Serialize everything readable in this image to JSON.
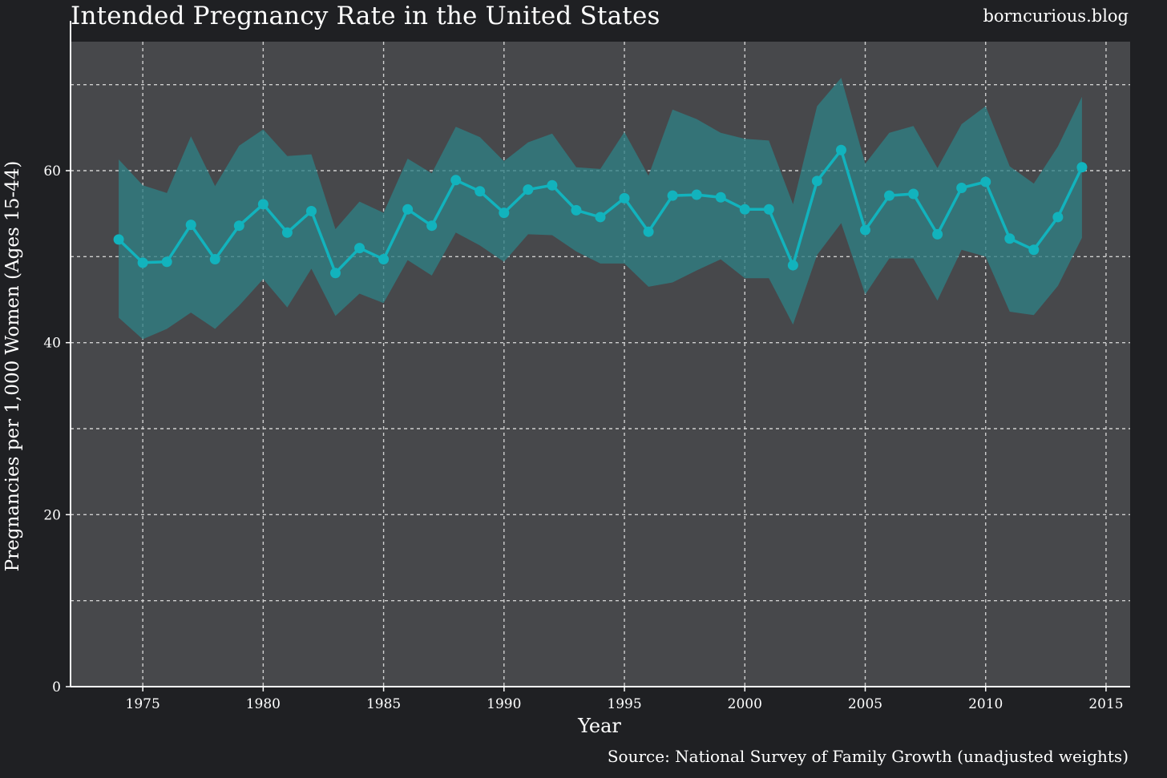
{
  "header": {
    "title": "Intended Pregnancy Rate in the United States",
    "watermark": "borncurious.blog"
  },
  "footer": {
    "source": "Source: National Survey of Family Growth (unadjusted weights)"
  },
  "colors": {
    "background": "#1f2023",
    "panel": "#47484b",
    "line": "#12b3bd",
    "band": "#2f7f84",
    "grid": "#d0d0d0"
  },
  "chart_data": {
    "type": "line",
    "title": "Intended Pregnancy Rate in the United States",
    "xlabel": "Year",
    "ylabel": "Pregnancies per 1,000 Women (Ages 15-44)",
    "xlim": [
      1972,
      2016
    ],
    "ylim": [
      0,
      75
    ],
    "x_ticks": [
      1975,
      1980,
      1985,
      1990,
      1995,
      2000,
      2005,
      2010,
      2015
    ],
    "y_ticks": [
      0,
      20,
      40,
      60
    ],
    "grid": true,
    "series": [
      {
        "name": "Intended pregnancy rate",
        "x": [
          1974,
          1975,
          1976,
          1977,
          1978,
          1979,
          1980,
          1981,
          1982,
          1983,
          1984,
          1985,
          1986,
          1987,
          1988,
          1989,
          1990,
          1991,
          1992,
          1993,
          1994,
          1995,
          1996,
          1997,
          1998,
          1999,
          2000,
          2001,
          2002,
          2003,
          2004,
          2005,
          2006,
          2007,
          2008,
          2009,
          2010,
          2011,
          2012,
          2013,
          2014
        ],
        "values": [
          52.0,
          49.3,
          49.4,
          53.7,
          49.7,
          53.6,
          56.1,
          52.8,
          55.3,
          48.1,
          51.0,
          49.7,
          55.5,
          53.6,
          58.9,
          57.6,
          55.1,
          57.8,
          58.3,
          55.4,
          54.6,
          56.8,
          52.9,
          57.1,
          57.2,
          56.9,
          55.5,
          55.5,
          49.0,
          58.8,
          62.4,
          53.1,
          57.1,
          57.3,
          52.6,
          58.0,
          58.7,
          52.1,
          50.8,
          54.6,
          60.4
        ]
      },
      {
        "name": "Upper bound",
        "x": [
          1974,
          1975,
          1976,
          1977,
          1978,
          1979,
          1980,
          1981,
          1982,
          1983,
          1984,
          1985,
          1986,
          1987,
          1988,
          1989,
          1990,
          1991,
          1992,
          1993,
          1994,
          1995,
          1996,
          1997,
          1998,
          1999,
          2000,
          2001,
          2002,
          2003,
          2004,
          2005,
          2006,
          2007,
          2008,
          2009,
          2010,
          2011,
          2012,
          2013,
          2014
        ],
        "values": [
          61.3,
          58.3,
          57.4,
          64.0,
          58.2,
          62.9,
          64.8,
          61.7,
          61.9,
          53.2,
          56.4,
          55.1,
          61.4,
          59.7,
          65.1,
          63.9,
          61.1,
          63.3,
          64.3,
          60.4,
          60.2,
          64.5,
          59.4,
          67.1,
          66.0,
          64.4,
          63.7,
          63.5,
          56.1,
          67.5,
          70.8,
          60.8,
          64.4,
          65.2,
          60.3,
          65.4,
          67.5,
          60.5,
          58.5,
          62.8,
          68.6
        ]
      },
      {
        "name": "Lower bound",
        "x": [
          1974,
          1975,
          1976,
          1977,
          1978,
          1979,
          1980,
          1981,
          1982,
          1983,
          1984,
          1985,
          1986,
          1987,
          1988,
          1989,
          1990,
          1991,
          1992,
          1993,
          1994,
          1995,
          1996,
          1997,
          1998,
          1999,
          2000,
          2001,
          2002,
          2003,
          2004,
          2005,
          2006,
          2007,
          2008,
          2009,
          2010,
          2011,
          2012,
          2013,
          2014
        ],
        "values": [
          42.9,
          40.4,
          41.6,
          43.5,
          41.6,
          44.3,
          47.4,
          44.1,
          48.6,
          43.1,
          45.7,
          44.6,
          49.6,
          47.8,
          52.8,
          51.3,
          49.4,
          52.6,
          52.5,
          50.6,
          49.2,
          49.2,
          46.5,
          47.0,
          48.4,
          49.7,
          47.5,
          47.5,
          42.1,
          50.2,
          53.9,
          45.6,
          49.8,
          49.8,
          44.9,
          50.8,
          50.0,
          43.6,
          43.2,
          46.6,
          52.2
        ]
      }
    ]
  }
}
